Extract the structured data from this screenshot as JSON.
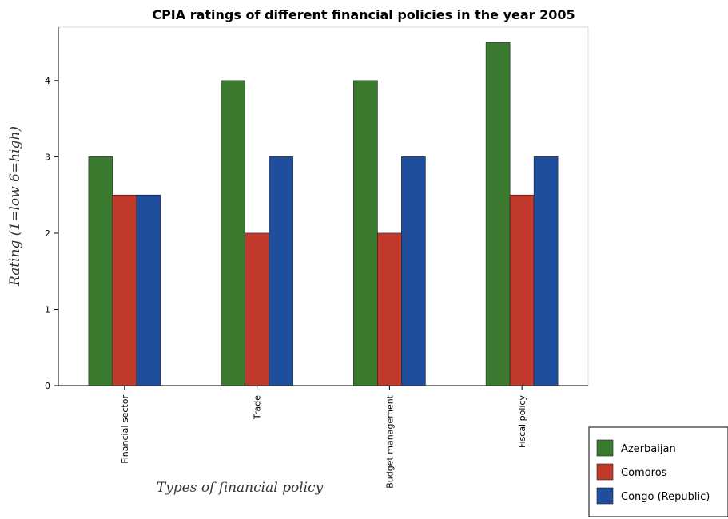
{
  "chart_data": {
    "type": "bar",
    "title": "CPIA ratings of different financial policies in the year 2005",
    "xlabel": "Types of financial policy",
    "ylabel": "Rating (1=low 6=high)",
    "categories": [
      "Financial sector",
      "Trade",
      "Budget management",
      "Fiscal policy"
    ],
    "ylim": [
      0,
      4.7
    ],
    "yticks": [
      0,
      1,
      2,
      3,
      4
    ],
    "series": [
      {
        "name": "Azerbaijan",
        "color": "#3a7a2e",
        "values": [
          3,
          4,
          4,
          4.5
        ]
      },
      {
        "name": "Comoros",
        "color": "#c0392b",
        "values": [
          2.5,
          2,
          2,
          2.5
        ]
      },
      {
        "name": "Congo (Republic)",
        "color": "#1f4e9c",
        "values": [
          2.5,
          3,
          3,
          3
        ]
      }
    ],
    "legend_position": "bottom-right",
    "grid": false
  }
}
